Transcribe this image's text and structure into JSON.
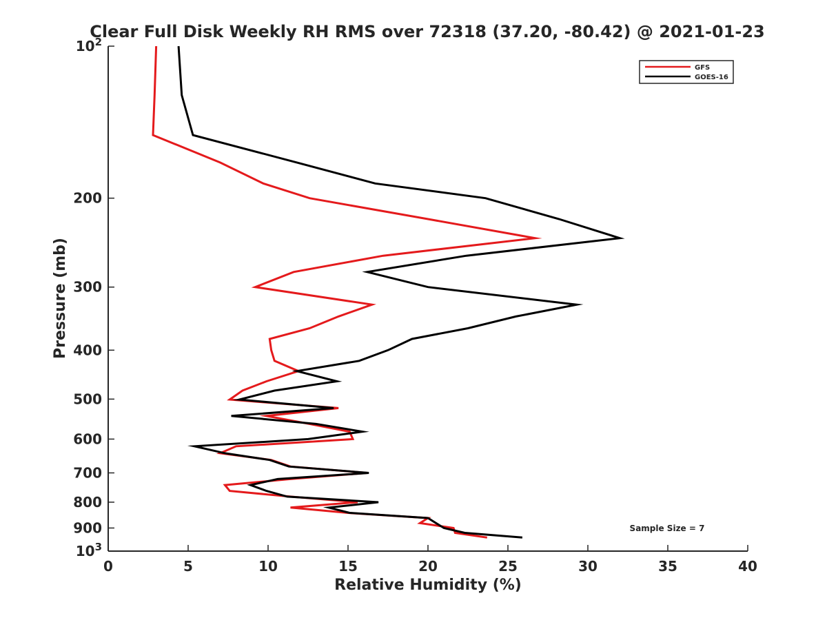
{
  "chart_data": {
    "type": "line",
    "title": "Clear Full Disk Weekly RH RMS over 72318 (37.20, -80.42) @ 2021-01-23",
    "xlabel": "Relative Humidity (%)",
    "ylabel": "Pressure (mb)",
    "xlim": [
      0,
      40
    ],
    "ylim": [
      100,
      1000
    ],
    "y_scale": "log",
    "y_reversed": true,
    "grid": false,
    "legend_position": "top-right",
    "x_ticks": [
      0,
      5,
      10,
      15,
      20,
      25,
      30,
      35,
      40
    ],
    "y_ticks": [
      {
        "value": 100,
        "label": "10",
        "sup": "2"
      },
      {
        "value": 200,
        "label": "200",
        "sup": ""
      },
      {
        "value": 300,
        "label": "300",
        "sup": ""
      },
      {
        "value": 400,
        "label": "400",
        "sup": ""
      },
      {
        "value": 500,
        "label": "500",
        "sup": ""
      },
      {
        "value": 600,
        "label": "600",
        "sup": ""
      },
      {
        "value": 700,
        "label": "700",
        "sup": ""
      },
      {
        "value": 800,
        "label": "800",
        "sup": ""
      },
      {
        "value": 900,
        "label": "900",
        "sup": ""
      },
      {
        "value": 1000,
        "label": "10",
        "sup": "3"
      }
    ],
    "annotation": "Sample Size = 7",
    "series": [
      {
        "name": "GFS",
        "color": "#e41a1c",
        "points": [
          {
            "x": 3.0,
            "y": 100
          },
          {
            "x": 2.9,
            "y": 125
          },
          {
            "x": 2.8,
            "y": 150
          },
          {
            "x": 7.0,
            "y": 170
          },
          {
            "x": 9.7,
            "y": 187
          },
          {
            "x": 12.6,
            "y": 200
          },
          {
            "x": 20.0,
            "y": 220
          },
          {
            "x": 26.7,
            "y": 240
          },
          {
            "x": 17.2,
            "y": 260
          },
          {
            "x": 11.6,
            "y": 280
          },
          {
            "x": 9.2,
            "y": 300
          },
          {
            "x": 16.5,
            "y": 325
          },
          {
            "x": 14.4,
            "y": 343
          },
          {
            "x": 12.6,
            "y": 362
          },
          {
            "x": 10.1,
            "y": 380
          },
          {
            "x": 10.2,
            "y": 400
          },
          {
            "x": 10.4,
            "y": 420
          },
          {
            "x": 11.9,
            "y": 440
          },
          {
            "x": 9.9,
            "y": 461
          },
          {
            "x": 8.4,
            "y": 481
          },
          {
            "x": 7.6,
            "y": 501
          },
          {
            "x": 14.4,
            "y": 521
          },
          {
            "x": 9.9,
            "y": 540
          },
          {
            "x": 12.6,
            "y": 560
          },
          {
            "x": 15.1,
            "y": 580
          },
          {
            "x": 15.3,
            "y": 600
          },
          {
            "x": 8.0,
            "y": 620
          },
          {
            "x": 7.0,
            "y": 640
          },
          {
            "x": 10.2,
            "y": 660
          },
          {
            "x": 11.4,
            "y": 680
          },
          {
            "x": 16.2,
            "y": 700
          },
          {
            "x": 11.4,
            "y": 720
          },
          {
            "x": 7.3,
            "y": 740
          },
          {
            "x": 7.6,
            "y": 760
          },
          {
            "x": 11.4,
            "y": 780
          },
          {
            "x": 15.6,
            "y": 800
          },
          {
            "x": 11.4,
            "y": 820
          },
          {
            "x": 15.0,
            "y": 840
          },
          {
            "x": 20.0,
            "y": 860
          },
          {
            "x": 19.5,
            "y": 880
          },
          {
            "x": 21.6,
            "y": 900
          },
          {
            "x": 21.7,
            "y": 920
          },
          {
            "x": 23.7,
            "y": 940
          }
        ]
      },
      {
        "name": "GOES-16",
        "color": "#000000",
        "points": [
          {
            "x": 4.4,
            "y": 100
          },
          {
            "x": 4.6,
            "y": 125
          },
          {
            "x": 5.3,
            "y": 150
          },
          {
            "x": 11.8,
            "y": 170
          },
          {
            "x": 16.7,
            "y": 187
          },
          {
            "x": 23.6,
            "y": 200
          },
          {
            "x": 28.2,
            "y": 220
          },
          {
            "x": 32.0,
            "y": 240
          },
          {
            "x": 22.4,
            "y": 260
          },
          {
            "x": 16.2,
            "y": 280
          },
          {
            "x": 20.0,
            "y": 300
          },
          {
            "x": 29.3,
            "y": 325
          },
          {
            "x": 25.5,
            "y": 343
          },
          {
            "x": 22.5,
            "y": 362
          },
          {
            "x": 19.0,
            "y": 380
          },
          {
            "x": 17.5,
            "y": 400
          },
          {
            "x": 15.7,
            "y": 420
          },
          {
            "x": 11.8,
            "y": 440
          },
          {
            "x": 14.3,
            "y": 461
          },
          {
            "x": 10.4,
            "y": 481
          },
          {
            "x": 8.2,
            "y": 501
          },
          {
            "x": 14.1,
            "y": 521
          },
          {
            "x": 7.7,
            "y": 540
          },
          {
            "x": 13.0,
            "y": 560
          },
          {
            "x": 15.9,
            "y": 580
          },
          {
            "x": 12.5,
            "y": 600
          },
          {
            "x": 5.4,
            "y": 620
          },
          {
            "x": 7.3,
            "y": 640
          },
          {
            "x": 10.1,
            "y": 660
          },
          {
            "x": 11.3,
            "y": 680
          },
          {
            "x": 16.3,
            "y": 700
          },
          {
            "x": 10.6,
            "y": 720
          },
          {
            "x": 8.9,
            "y": 740
          },
          {
            "x": 9.9,
            "y": 760
          },
          {
            "x": 11.2,
            "y": 780
          },
          {
            "x": 16.9,
            "y": 800
          },
          {
            "x": 13.8,
            "y": 820
          },
          {
            "x": 15.1,
            "y": 840
          },
          {
            "x": 20.0,
            "y": 860
          },
          {
            "x": 20.5,
            "y": 880
          },
          {
            "x": 21.0,
            "y": 900
          },
          {
            "x": 22.3,
            "y": 920
          },
          {
            "x": 25.9,
            "y": 940
          }
        ]
      }
    ]
  }
}
